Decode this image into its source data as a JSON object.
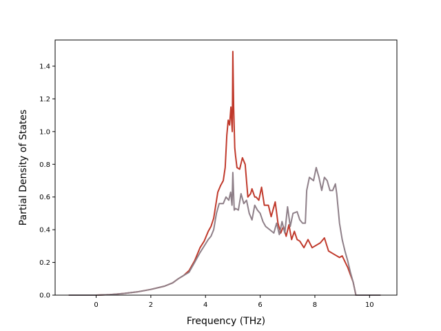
{
  "chart_data": {
    "type": "line",
    "title": "",
    "xlabel": "Frequency (THz)",
    "ylabel": "Partial Density of States",
    "xlim": [
      -1.5,
      11.0
    ],
    "ylim": [
      0.0,
      1.56
    ],
    "xticks": [
      0,
      2,
      4,
      6,
      8,
      10
    ],
    "yticks": [
      0.0,
      0.2,
      0.4,
      0.6,
      0.8,
      1.0,
      1.2,
      1.4
    ],
    "xtick_labels": [
      "0",
      "2",
      "4",
      "6",
      "8",
      "10"
    ],
    "ytick_labels": [
      "0.0",
      "0.2",
      "0.4",
      "0.6",
      "0.8",
      "1.0",
      "1.2",
      "1.4"
    ],
    "grid": false,
    "legend": "none",
    "series": [
      {
        "color": "#c0392b",
        "x": [
          -1.0,
          0.0,
          0.5,
          1.0,
          1.5,
          2.0,
          2.5,
          2.8,
          3.0,
          3.2,
          3.4,
          3.6,
          3.8,
          3.95,
          4.1,
          4.2,
          4.3,
          4.45,
          4.55,
          4.65,
          4.72,
          4.78,
          4.83,
          4.88,
          4.93,
          4.98,
          5.0,
          5.03,
          5.07,
          5.1,
          5.15,
          5.25,
          5.35,
          5.45,
          5.55,
          5.65,
          5.7,
          5.8,
          5.85,
          5.95,
          6.05,
          6.15,
          6.3,
          6.4,
          6.55,
          6.65,
          6.75,
          6.85,
          6.95,
          7.05,
          7.15,
          7.25,
          7.35,
          7.45,
          7.6,
          7.75,
          7.9,
          8.0,
          8.2,
          8.35,
          8.5,
          8.7,
          8.9,
          9.0,
          9.2,
          9.4,
          9.5,
          10.0,
          10.4
        ],
        "y": [
          0.0,
          0.0,
          0.003,
          0.01,
          0.02,
          0.035,
          0.055,
          0.075,
          0.1,
          0.12,
          0.15,
          0.21,
          0.29,
          0.33,
          0.39,
          0.42,
          0.47,
          0.63,
          0.67,
          0.7,
          0.78,
          0.98,
          1.07,
          1.04,
          1.15,
          1.0,
          1.49,
          1.15,
          0.9,
          0.85,
          0.78,
          0.77,
          0.84,
          0.8,
          0.6,
          0.62,
          0.65,
          0.6,
          0.6,
          0.58,
          0.66,
          0.55,
          0.55,
          0.48,
          0.57,
          0.44,
          0.38,
          0.42,
          0.36,
          0.43,
          0.34,
          0.39,
          0.34,
          0.33,
          0.29,
          0.34,
          0.29,
          0.3,
          0.32,
          0.35,
          0.27,
          0.25,
          0.23,
          0.24,
          0.17,
          0.08,
          0.0,
          0.0,
          0.0
        ]
      },
      {
        "color": "#8e7f88",
        "x": [
          -1.0,
          0.0,
          0.5,
          1.0,
          1.5,
          2.0,
          2.5,
          2.8,
          3.0,
          3.2,
          3.4,
          3.6,
          3.8,
          3.95,
          4.1,
          4.2,
          4.3,
          4.4,
          4.5,
          4.65,
          4.75,
          4.85,
          4.92,
          4.97,
          5.0,
          5.05,
          5.1,
          5.2,
          5.3,
          5.4,
          5.5,
          5.6,
          5.7,
          5.8,
          5.9,
          6.0,
          6.1,
          6.2,
          6.35,
          6.5,
          6.6,
          6.7,
          6.8,
          6.9,
          7.0,
          7.1,
          7.2,
          7.35,
          7.45,
          7.55,
          7.65,
          7.7,
          7.8,
          7.95,
          8.05,
          8.15,
          8.25,
          8.35,
          8.45,
          8.55,
          8.65,
          8.75,
          8.8,
          8.9,
          9.0,
          9.1,
          9.2,
          9.3,
          9.4,
          9.5,
          10.0,
          10.4
        ],
        "y": [
          0.0,
          0.0,
          0.003,
          0.01,
          0.02,
          0.035,
          0.055,
          0.075,
          0.1,
          0.12,
          0.14,
          0.2,
          0.26,
          0.3,
          0.34,
          0.36,
          0.4,
          0.5,
          0.56,
          0.56,
          0.6,
          0.58,
          0.63,
          0.55,
          0.75,
          0.52,
          0.53,
          0.52,
          0.62,
          0.56,
          0.58,
          0.5,
          0.46,
          0.55,
          0.52,
          0.5,
          0.45,
          0.42,
          0.4,
          0.38,
          0.44,
          0.37,
          0.45,
          0.38,
          0.54,
          0.42,
          0.5,
          0.51,
          0.46,
          0.44,
          0.44,
          0.64,
          0.72,
          0.7,
          0.78,
          0.72,
          0.64,
          0.72,
          0.7,
          0.64,
          0.64,
          0.68,
          0.62,
          0.44,
          0.34,
          0.27,
          0.21,
          0.14,
          0.08,
          0.0,
          0.0,
          0.0
        ]
      }
    ]
  }
}
